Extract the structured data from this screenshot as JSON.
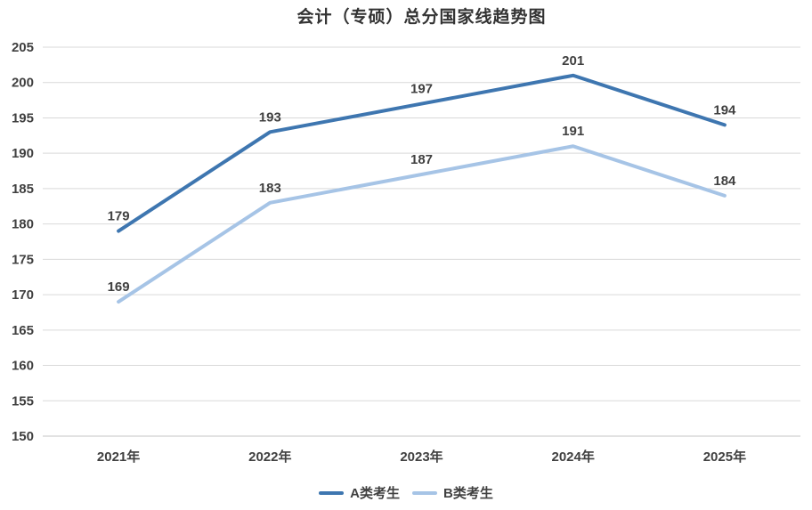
{
  "chart_data": {
    "type": "line",
    "title": "会计（专硕）总分国家线趋势图",
    "categories": [
      "2021年",
      "2022年",
      "2023年",
      "2024年",
      "2025年"
    ],
    "series": [
      {
        "name": "A类考生",
        "values": [
          179,
          193,
          197,
          201,
          194
        ],
        "color": "#3E76B0"
      },
      {
        "name": "B类考生",
        "values": [
          169,
          183,
          187,
          191,
          184
        ],
        "color": "#A6C4E6"
      }
    ],
    "xlabel": "",
    "ylabel": "",
    "ylim": [
      150,
      205
    ],
    "ytick_step": 5,
    "grid": true,
    "legend_position": "bottom",
    "data_labels": true,
    "colors": {
      "text": "#404040",
      "title": "#333333",
      "gridline": "#D9D9D9",
      "axis_line": "#C6C6C6"
    }
  }
}
